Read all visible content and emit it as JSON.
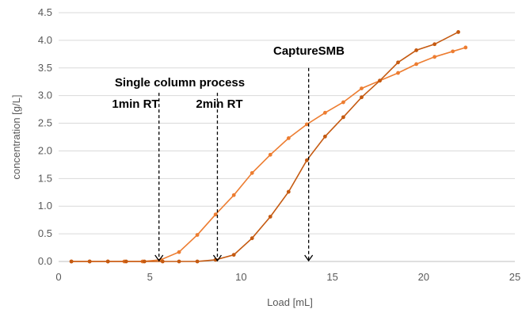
{
  "chart_data": {
    "type": "line",
    "xlabel": "Load [mL]",
    "ylabel": "concentration [g/L]",
    "xlim": [
      0,
      25
    ],
    "ylim": [
      0,
      4.5
    ],
    "xticks": [
      "0",
      "5",
      "10",
      "15",
      "20",
      "25"
    ],
    "yticks": [
      "0.0",
      "0.5",
      "1.0",
      "1.5",
      "2.0",
      "2.5",
      "3.0",
      "3.5",
      "4.0",
      "4.5"
    ],
    "grid": true,
    "series": [
      {
        "color": "#ed7d31",
        "x": [
          0.7,
          1.7,
          2.7,
          3.6,
          4.6,
          5.6,
          6.6,
          7.6,
          8.6,
          9.6,
          10.6,
          11.6,
          12.6,
          13.6,
          14.6,
          15.6,
          16.6,
          17.6,
          18.6,
          19.6,
          20.6,
          21.6,
          22.3
        ],
        "y": [
          0.0,
          0.0,
          0.0,
          0.0,
          0.0,
          0.03,
          0.17,
          0.48,
          0.85,
          1.2,
          1.6,
          1.93,
          2.23,
          2.48,
          2.69,
          2.88,
          3.13,
          3.27,
          3.41,
          3.57,
          3.7,
          3.8,
          3.87
        ]
      },
      {
        "color": "#c55a11",
        "x": [
          0.7,
          1.7,
          2.7,
          3.7,
          4.7,
          5.7,
          6.6,
          7.6,
          8.6,
          9.6,
          10.6,
          11.6,
          12.6,
          13.6,
          14.6,
          15.6,
          16.6,
          17.6,
          18.6,
          19.6,
          20.6,
          21.9
        ],
        "y": [
          0.0,
          0.0,
          0.0,
          0.0,
          0.0,
          0.0,
          0.0,
          0.0,
          0.03,
          0.12,
          0.42,
          0.81,
          1.26,
          1.83,
          2.26,
          2.61,
          2.97,
          3.27,
          3.6,
          3.82,
          3.93,
          4.15
        ]
      }
    ],
    "annotations": [
      {
        "id": "single",
        "lines": [
          "Single column process"
        ]
      },
      {
        "id": "rt1",
        "lines": [
          "1min RT"
        ]
      },
      {
        "id": "rt2",
        "lines": [
          "2min RT"
        ]
      },
      {
        "id": "smb",
        "lines": [
          "CaptureSMB"
        ]
      }
    ],
    "arrows": [
      {
        "x": 5.5,
        "y_top": 3.05,
        "y_bottom": 0.0
      },
      {
        "x": 8.7,
        "y_top": 3.05,
        "y_bottom": 0.0
      },
      {
        "x": 13.7,
        "y_top": 3.5,
        "y_bottom": 0.0
      }
    ]
  }
}
